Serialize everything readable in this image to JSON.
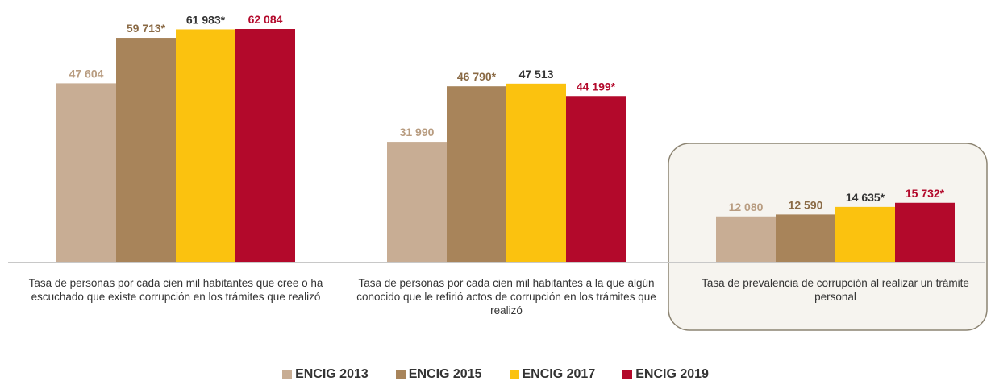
{
  "chart_data": {
    "type": "bar",
    "categories": [
      "Tasa de personas por cada cien mil habitantes que cree o ha escuchado que existe corrupción en los trámites que realizó",
      "Tasa de personas por cada cien mil habitantes a la que algún conocido que le refirió actos de corrupción en los trámites que realizó",
      "Tasa de prevalencia de corrupción al realizar un trámite personal"
    ],
    "series": [
      {
        "name": "ENCIG 2013",
        "color": "#c8ad94",
        "label_color": "#b89c80",
        "values": [
          47604,
          31990,
          12080
        ],
        "value_labels": [
          "47 604",
          "31 990",
          "12 080"
        ]
      },
      {
        "name": "ENCIG 2015",
        "color": "#a8845a",
        "label_color": "#8a6a45",
        "values": [
          59713,
          46790,
          12590
        ],
        "value_labels": [
          "59 713*",
          "46 790*",
          "12 590"
        ]
      },
      {
        "name": "ENCIG 2017",
        "color": "#fbc20f",
        "label_color": "#333333",
        "values": [
          61983,
          47513,
          14635
        ],
        "value_labels": [
          "61 983*",
          "47 513",
          "14 635*"
        ]
      },
      {
        "name": "ENCIG 2019",
        "color": "#b3092b",
        "label_color": "#b3092b",
        "values": [
          62084,
          44199,
          15732
        ],
        "value_labels": [
          "62 084",
          "44 199*",
          "15 732*"
        ]
      }
    ]
  }
}
